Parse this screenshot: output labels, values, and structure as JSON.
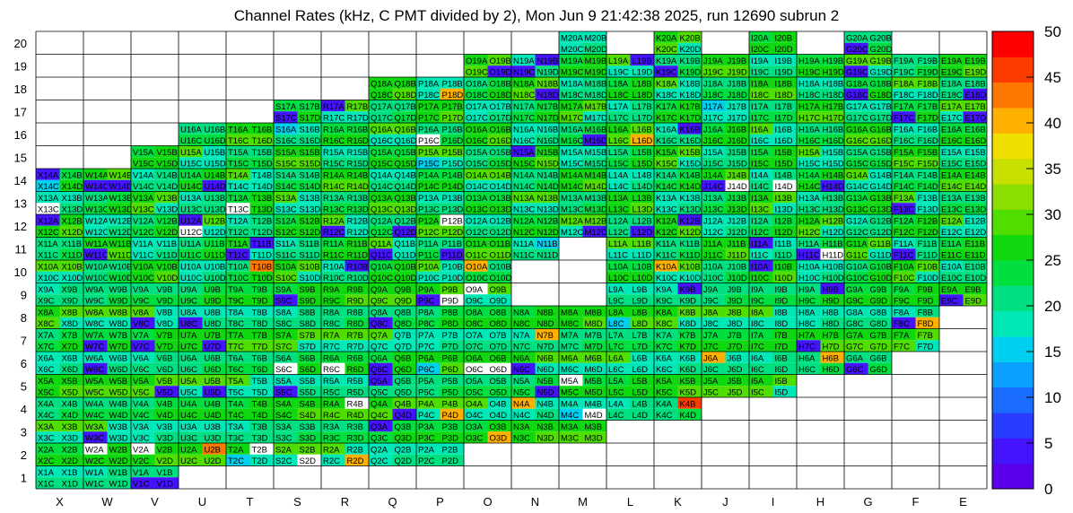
{
  "title": "Channel Rates (kHz, C PMT divided by 2), Mon Jun  9 21:42:38 2025, run 12690 subrun 2",
  "chart_data": {
    "type": "heatmap",
    "columns": [
      "X",
      "W",
      "V",
      "U",
      "T",
      "S",
      "R",
      "Q",
      "P",
      "O",
      "N",
      "M",
      "L",
      "K",
      "J",
      "I",
      "H",
      "G",
      "F",
      "E"
    ],
    "rows": [
      1,
      2,
      3,
      4,
      5,
      6,
      7,
      8,
      9,
      10,
      11,
      12,
      13,
      14,
      15,
      16,
      17,
      18,
      19,
      20
    ],
    "cell_suffixes": [
      "A",
      "B",
      "C",
      "D"
    ],
    "zlim": [
      0,
      50
    ],
    "colorbar_ticks": [
      0,
      5,
      10,
      15,
      20,
      25,
      30,
      35,
      40,
      45,
      50
    ],
    "palette": [
      "#5a00e8",
      "#4414ff",
      "#2a3cff",
      "#1a6cff",
      "#0aa0ff",
      "#00d0f0",
      "#00e8b8",
      "#00e080",
      "#00de40",
      "#10d810",
      "#50de00",
      "#8cde00",
      "#c8e000",
      "#f0e000",
      "#ffb000",
      "#ff7800",
      "#ff3c00",
      "#ff0000"
    ],
    "present": {
      "1": [
        [
          "X",
          "W"
        ],
        [
          "V",
          "V"
        ]
      ],
      "2": [
        [
          "X",
          "P"
        ]
      ],
      "3": [
        [
          "X",
          "M"
        ]
      ],
      "4": [
        [
          "X",
          "K"
        ]
      ],
      "5": [
        [
          "X",
          "I"
        ]
      ],
      "6": [
        [
          "X",
          "G"
        ]
      ],
      "7": [
        [
          "X",
          "F"
        ]
      ],
      "8": [
        [
          "X",
          "F"
        ]
      ],
      "9": [
        [
          "X",
          "O"
        ],
        [
          "L",
          "E"
        ]
      ],
      "10": [
        [
          "X",
          "O"
        ],
        [
          "L",
          "E"
        ]
      ],
      "11": [
        [
          "X",
          "N"
        ],
        [
          "L",
          "E"
        ]
      ],
      "12": [
        [
          "X",
          "E"
        ]
      ],
      "13": [
        [
          "X",
          "E"
        ]
      ],
      "14": [
        [
          "X",
          "E"
        ]
      ],
      "15": [
        [
          "V",
          "E"
        ]
      ],
      "16": [
        [
          "U",
          "E"
        ]
      ],
      "17": [
        [
          "S",
          "E"
        ]
      ],
      "18": [
        [
          "Q",
          "E"
        ]
      ],
      "19": [
        [
          "O",
          "E"
        ]
      ],
      "20": [
        [
          "M",
          "M"
        ],
        [
          "K",
          "K"
        ],
        [
          "I",
          "I"
        ],
        [
          "G",
          "G"
        ]
      ]
    },
    "overrides": {
      "X14A": 3,
      "X14C": 16,
      "X13C": 55,
      "X12A": 3,
      "W14C": 3,
      "W14D": 3,
      "W11C": 3,
      "W7C": 3,
      "W6C": 3,
      "W3C": 3,
      "W2A": 55,
      "V5D": 3,
      "V2A": 55,
      "V1C": 3,
      "V1D": 3,
      "V8C": 3,
      "V7C": 3,
      "U14D": 3,
      "U12A": 3,
      "U12C": 55,
      "U5D": 3,
      "U2B": 42,
      "U7D": 3,
      "U8C": 3,
      "T10B": 42,
      "T13C": 55,
      "T11B": 3,
      "T2B": 55,
      "T2C": 14,
      "T11C": 3,
      "S9C": 3,
      "S16A": 14,
      "S5C": 3,
      "S17C": 3,
      "S6C": 55,
      "S2D": 55,
      "R10B": 3,
      "R12C": 3,
      "R6C": 55,
      "R17A": 3,
      "R4B": 55,
      "R2D": 41,
      "Q6C": 3,
      "Q3A": 3,
      "Q12D": 3,
      "Q11C": 3,
      "Q8C": 3,
      "Q5A": 3,
      "Q4D": 3,
      "P9C": 3,
      "P9D": 55,
      "P18D": 41,
      "P16C": 55,
      "P4D": 41,
      "P11D": 3,
      "P6C": 14,
      "P15C": 14,
      "P12B": 55,
      "O9A": 55,
      "O10A": 41,
      "O6C": 55,
      "O6D": 55,
      "O3D": 41,
      "O19D": 3,
      "N19B": 3,
      "N18D": 3,
      "N6C": 3,
      "N5D": 3,
      "N4A": 41,
      "N7B": 41,
      "N11B": 14,
      "N19C": 3,
      "N15A": 3,
      "M16D": 3,
      "M5A": 55,
      "M4C": 14,
      "M4D": 55,
      "M12D": 3,
      "L19B": 3,
      "L12D": 3,
      "L8C": 14,
      "L16D": 41,
      "K19C": 3,
      "K16B": 3,
      "K10A": 41,
      "K9B": 3,
      "K4B": 45,
      "K12B": 3,
      "J6A": 41,
      "J17A": 14,
      "J14C": 3,
      "J14D": 55,
      "I10A": 3,
      "I14D": 55,
      "I11A": 3,
      "H11C": 3,
      "H11D": 55,
      "H9B": 3,
      "H7C": 3,
      "H6B": 41,
      "H14D": 3,
      "G19C": 3,
      "G20C": 3,
      "G18C": 3,
      "G6C": 3,
      "F17C": 3,
      "F11C": 3,
      "F8C": 3,
      "F8D": 41,
      "F13C": 3,
      "E9C": 3,
      "E18D": 3,
      "E17D": 3
    }
  }
}
